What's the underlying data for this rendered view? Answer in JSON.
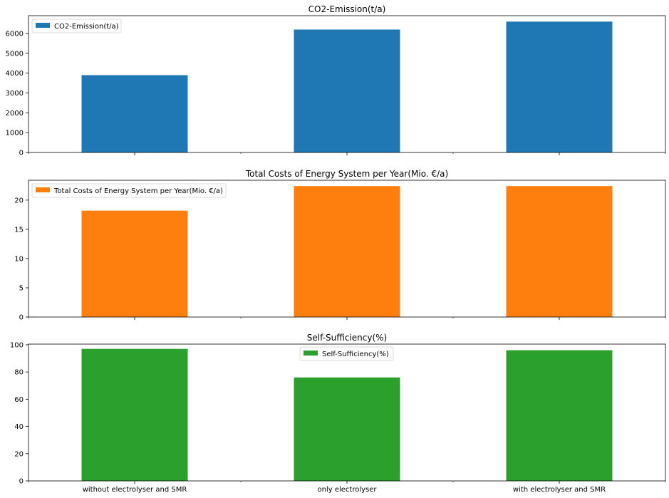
{
  "figure": {
    "background": "#ffffff"
  },
  "chart_data": [
    {
      "type": "bar",
      "title": "CO2-Emission(t/a)",
      "categories": [
        "without electrolyser and SMR",
        "only electrolyser",
        "with electrolyser and SMR"
      ],
      "series": [
        {
          "name": "CO2-Emission(t/a)",
          "values": [
            3900,
            6200,
            6600
          ],
          "color": "#1f77b4"
        }
      ],
      "ylim": [
        0,
        6900
      ],
      "yticks": [
        0,
        1000,
        2000,
        3000,
        4000,
        5000,
        6000
      ],
      "show_xtick_labels": false,
      "legend_position": "upper left"
    },
    {
      "type": "bar",
      "title": "Total Costs of Energy System per Year(Mio. €/a)",
      "categories": [
        "without electrolyser and SMR",
        "only electrolyser",
        "with electrolyser and SMR"
      ],
      "series": [
        {
          "name": "Total Costs of Energy System per Year(Mio. €/a)",
          "values": [
            18.2,
            22.4,
            22.4
          ],
          "color": "#ff7f0e"
        }
      ],
      "ylim": [
        0,
        23.4
      ],
      "yticks": [
        0,
        5,
        10,
        15,
        20
      ],
      "show_xtick_labels": false,
      "legend_position": "upper left"
    },
    {
      "type": "bar",
      "title": "Self-Sufficiency(%)",
      "categories": [
        "without electrolyser and SMR",
        "only electrolyser",
        "with electrolyser and SMR"
      ],
      "series": [
        {
          "name": "Self-Sufficiency(%)",
          "values": [
            97,
            76,
            96
          ],
          "color": "#2ca02c"
        }
      ],
      "ylim": [
        0,
        100.5
      ],
      "yticks": [
        0,
        20,
        40,
        60,
        80,
        100
      ],
      "show_xtick_labels": true,
      "legend_position": "upper center"
    }
  ]
}
